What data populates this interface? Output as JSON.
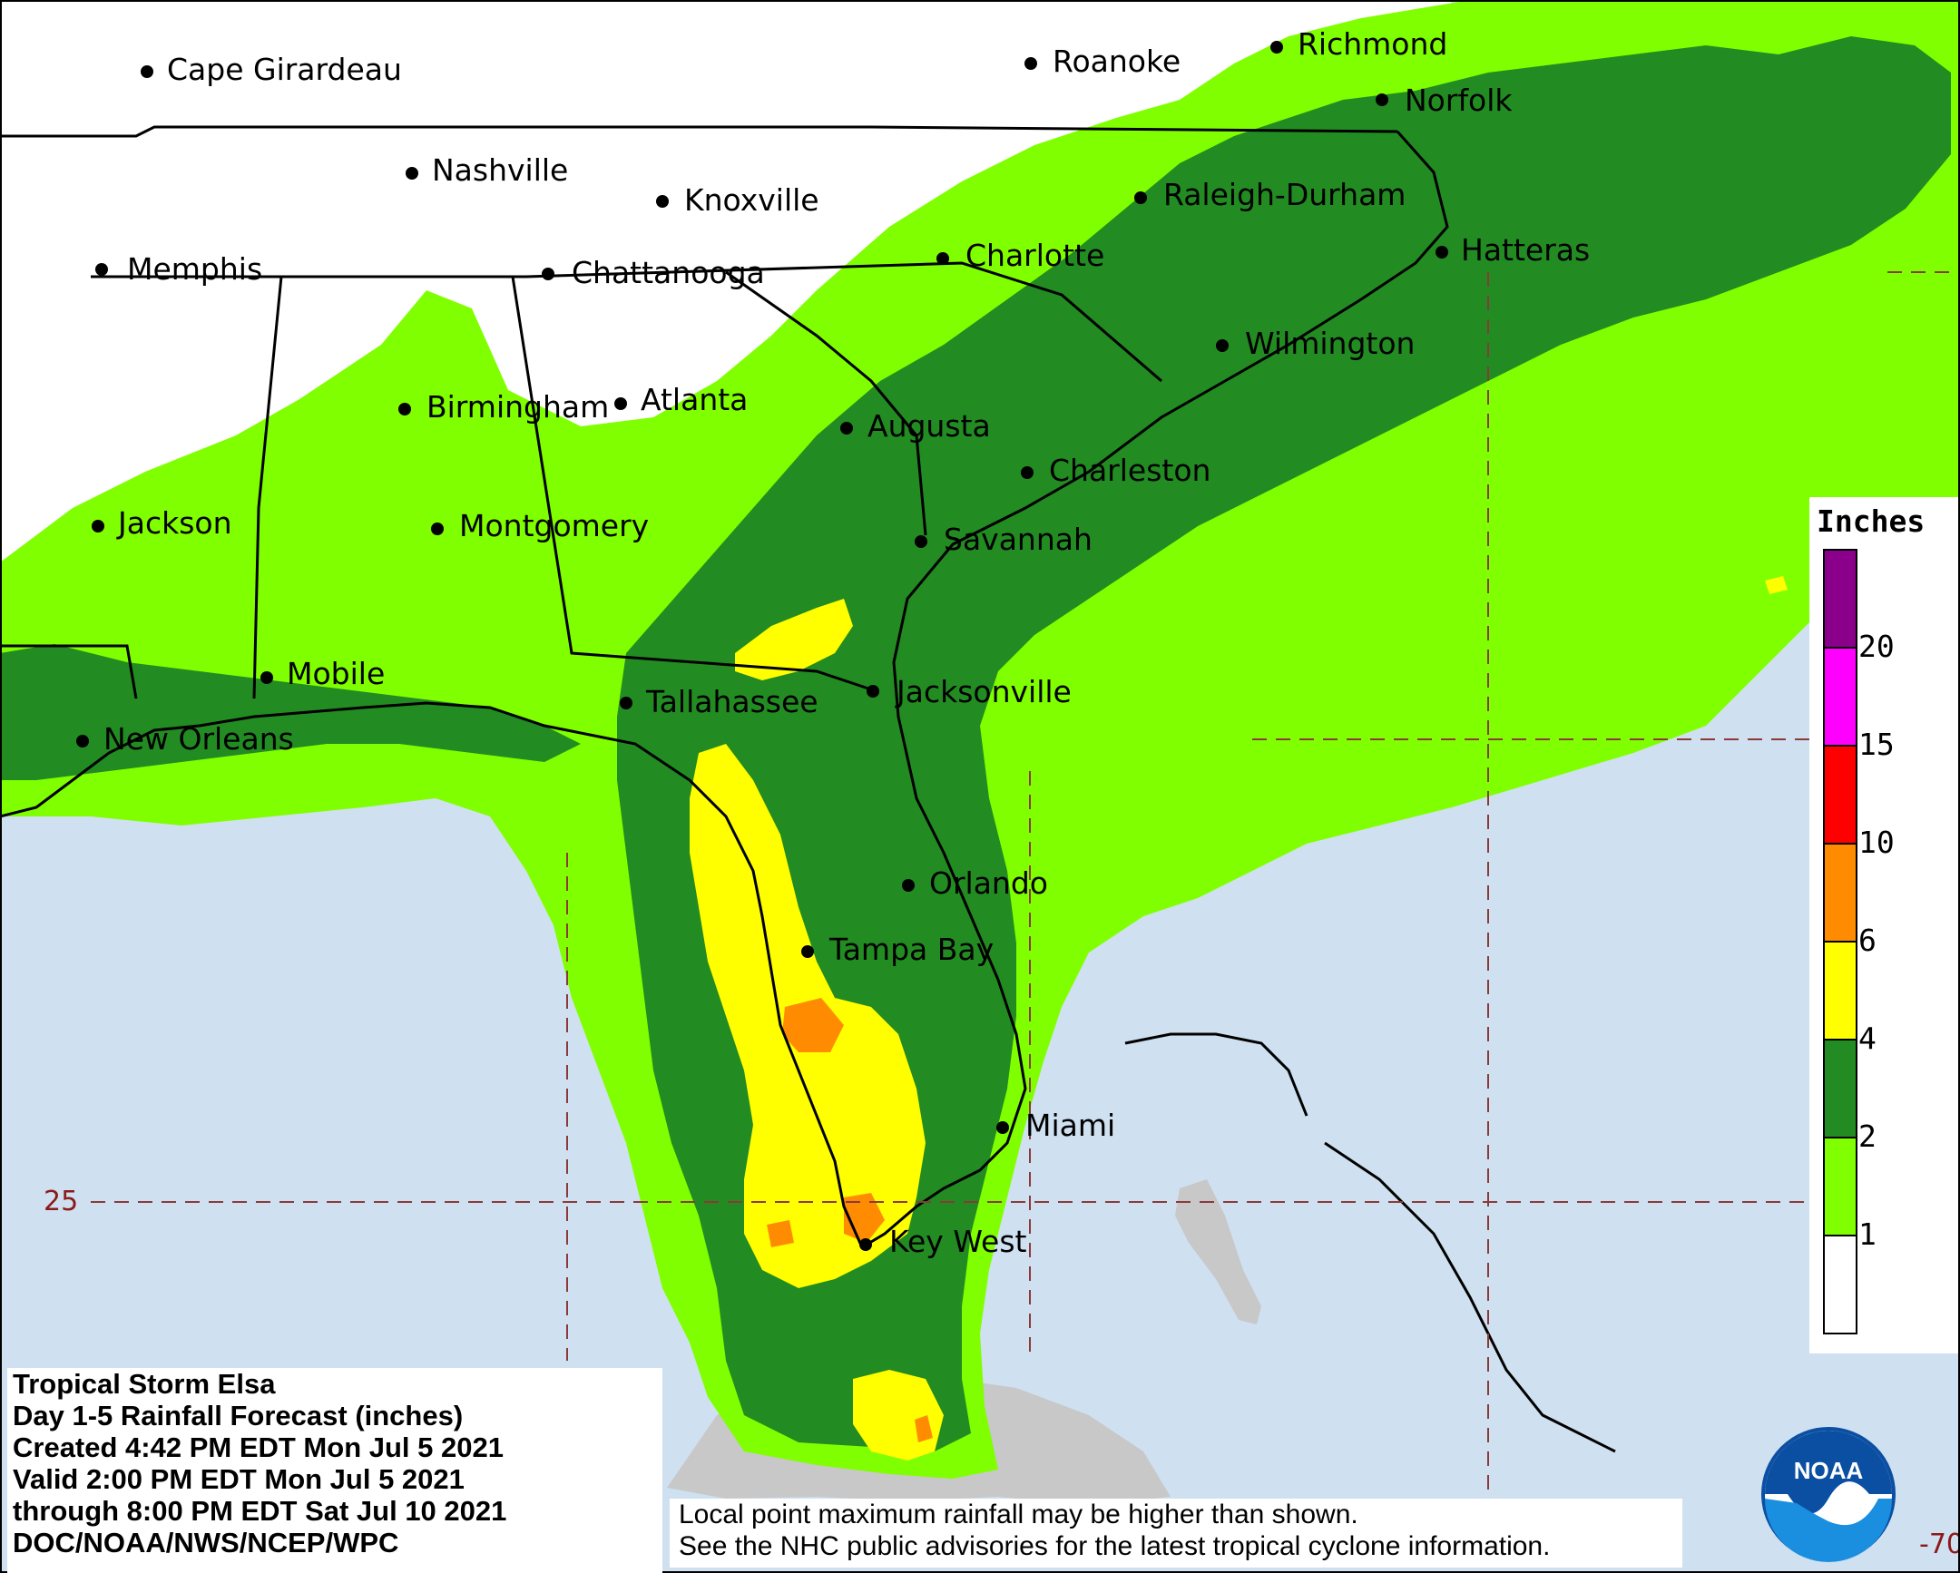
{
  "map": {
    "cities": [
      {
        "id": "cape-girardeau",
        "name": "Cape Girardeau"
      },
      {
        "id": "roanoke",
        "name": "Roanoke"
      },
      {
        "id": "richmond",
        "name": "Richmond"
      },
      {
        "id": "norfolk",
        "name": "Norfolk"
      },
      {
        "id": "nashville",
        "name": "Nashville"
      },
      {
        "id": "knoxville",
        "name": "Knoxville"
      },
      {
        "id": "raleigh-durham",
        "name": "Raleigh-Durham"
      },
      {
        "id": "memphis",
        "name": "Memphis"
      },
      {
        "id": "chattanooga",
        "name": "Chattanooga"
      },
      {
        "id": "charlotte",
        "name": "Charlotte"
      },
      {
        "id": "hatteras",
        "name": "Hatteras"
      },
      {
        "id": "wilmington",
        "name": "Wilmington"
      },
      {
        "id": "birmingham",
        "name": "Birmingham"
      },
      {
        "id": "atlanta",
        "name": "Atlanta"
      },
      {
        "id": "augusta",
        "name": "Augusta"
      },
      {
        "id": "charleston",
        "name": "Charleston"
      },
      {
        "id": "jackson",
        "name": "Jackson"
      },
      {
        "id": "montgomery",
        "name": "Montgomery"
      },
      {
        "id": "savannah",
        "name": "Savannah"
      },
      {
        "id": "mobile",
        "name": "Mobile"
      },
      {
        "id": "tallahassee",
        "name": "Tallahassee"
      },
      {
        "id": "jacksonville",
        "name": "Jacksonville"
      },
      {
        "id": "new-orleans",
        "name": "New Orleans"
      },
      {
        "id": "orlando",
        "name": "Orlando"
      },
      {
        "id": "tampa-bay",
        "name": "Tampa Bay"
      },
      {
        "id": "miami",
        "name": "Miami"
      },
      {
        "id": "key-west",
        "name": "Key West"
      }
    ],
    "grid_labels": {
      "lat_25": "25",
      "lon_70": "-70"
    },
    "colors": {
      "ocean": "#cfe0f0",
      "land_no_rain": "#ffffff",
      "foreign_land": "#c8c8c8",
      "r1": "#7fff00",
      "r2": "#228b22",
      "r4": "#ffff00",
      "r6": "#ff8c00",
      "r10": "#ff0000",
      "r15": "#ff00ff",
      "r20": "#8b008b"
    }
  },
  "legend": {
    "title": "Inches",
    "bins": [
      {
        "label": "",
        "color": "#ffffff"
      },
      {
        "label": "1",
        "color": "#7fff00"
      },
      {
        "label": "2",
        "color": "#228b22"
      },
      {
        "label": "4",
        "color": "#ffff00"
      },
      {
        "label": "6",
        "color": "#ff8c00"
      },
      {
        "label": "10",
        "color": "#ff0000"
      },
      {
        "label": "15",
        "color": "#ff00ff"
      },
      {
        "label": "20",
        "color": "#8b008b"
      }
    ]
  },
  "info": {
    "line1": "Tropical Storm Elsa",
    "line2": "Day 1-5 Rainfall Forecast (inches)",
    "line3": "Created 4:42 PM EDT Mon Jul 5 2021",
    "line4": "Valid 2:00 PM EDT Mon Jul 5 2021",
    "line5": "through 8:00 PM EDT Sat Jul 10 2021",
    "line6": "DOC/NOAA/NWS/NCEP/WPC"
  },
  "note": {
    "line1": "Local point maximum rainfall may be higher than shown.",
    "line2": "See the NHC public advisories for the latest tropical cyclone information."
  },
  "logo": {
    "text": "NOAA"
  }
}
